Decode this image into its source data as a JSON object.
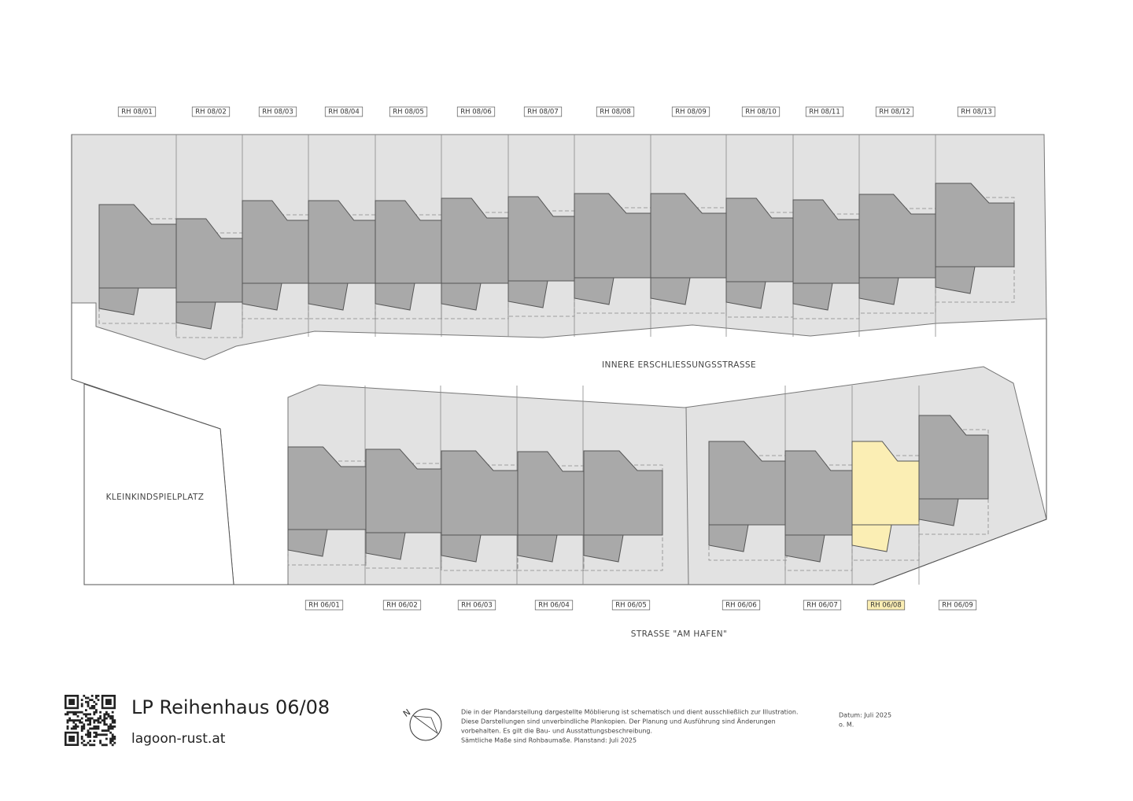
{
  "plan": {
    "top_row": {
      "units": [
        "RH 08/01",
        "RH 08/02",
        "RH 08/03",
        "RH 08/04",
        "RH 08/05",
        "RH 08/06",
        "RH 08/07",
        "RH 08/08",
        "RH 08/09",
        "RH 08/10",
        "RH 08/11",
        "RH 08/12",
        "RH 08/13"
      ]
    },
    "bottom_row": {
      "units": [
        "RH 06/01",
        "RH 06/02",
        "RH 06/03",
        "RH 06/04",
        "RH 06/05",
        "RH 06/06",
        "RH 06/07",
        "RH 06/08",
        "RH 06/09"
      ]
    },
    "inner_street": "INNERE ERSCHLIESSUNGSSTRASSE",
    "outer_street": "STRASSE \"AM HAFEN\"",
    "playground": "KLEINKINDSPIELPLATZ"
  },
  "footer": {
    "title": "LP Reihenhaus 06/08",
    "url": "lagoon-rust.at",
    "disclaimer": [
      "Die in der Plandarstellung dargestellte Möblierung ist schematisch und dient ausschließlich zur Illustration.",
      "Diese Darstellungen sind unverbindliche Plankopien. Der Planung und Ausführung sind Änderungen",
      "vorbehalten. Es gilt die Bau- und Ausstattungsbeschreibung.",
      "Sämtliche Maße sind Rohbaumaße. Planstand: Juli 2025"
    ],
    "date": "Datum: Juli 2025",
    "scale": "o. M."
  }
}
